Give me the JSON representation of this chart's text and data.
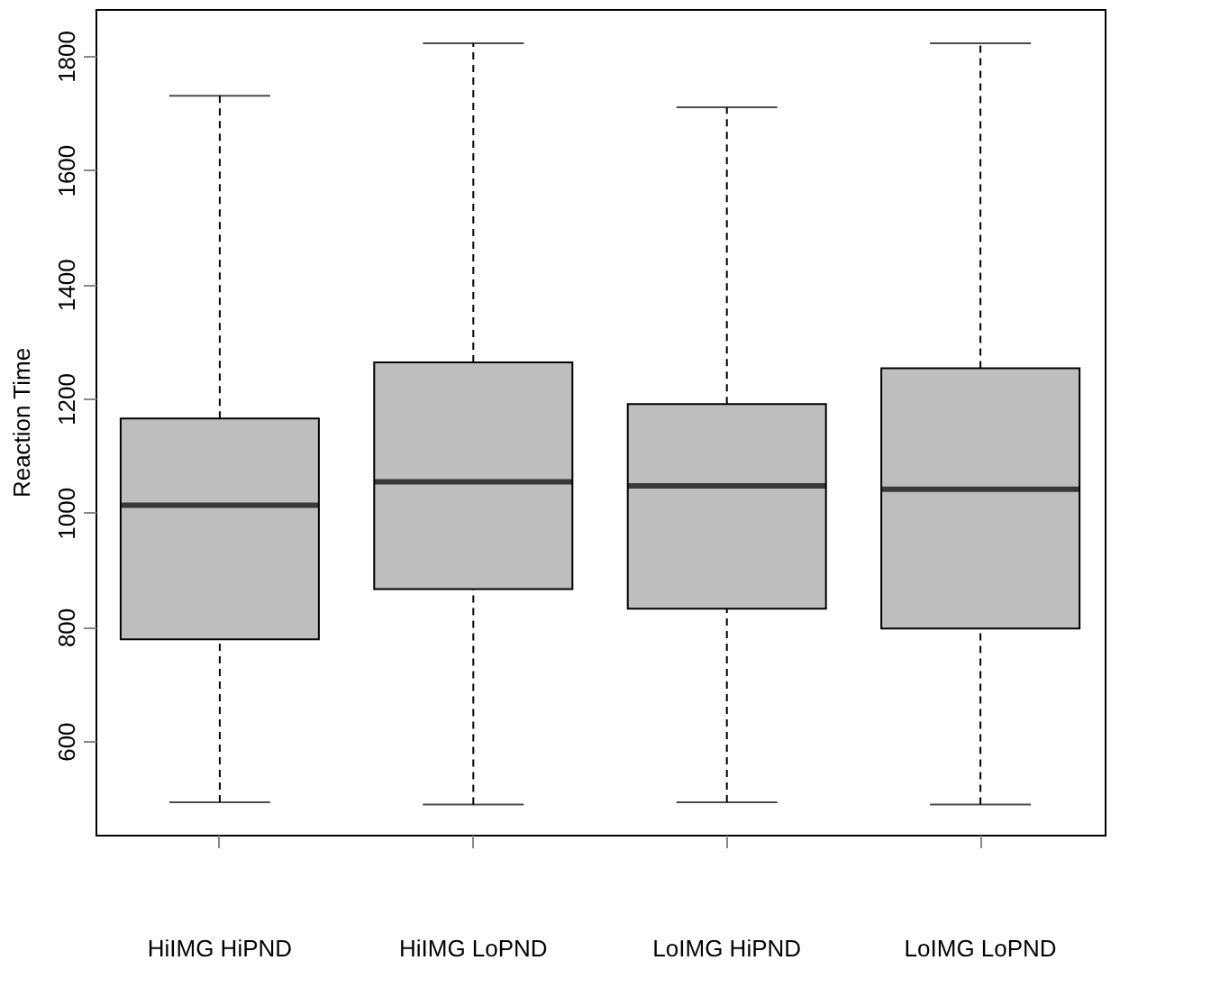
{
  "chart_data": {
    "type": "box",
    "ylabel": "Reaction Time",
    "categories": [
      "HiIMG HiPND",
      "HiIMG LoPND",
      "LoIMG HiPND",
      "LoIMG LoPND"
    ],
    "color": "#bebebe",
    "boxes": [
      {
        "low": 493,
        "q1": 778,
        "median": 1013,
        "q3": 1165,
        "high": 1730
      },
      {
        "low": 489,
        "q1": 866,
        "median": 1054,
        "q3": 1263,
        "high": 1822
      },
      {
        "low": 493,
        "q1": 832,
        "median": 1047,
        "q3": 1190,
        "high": 1710
      },
      {
        "low": 489,
        "q1": 797,
        "median": 1041,
        "q3": 1253,
        "high": 1822
      }
    ],
    "ylim": [
      436,
      1882
    ],
    "yticks": [
      600,
      800,
      1000,
      1200,
      1400,
      1600,
      1800
    ],
    "grid": false
  }
}
